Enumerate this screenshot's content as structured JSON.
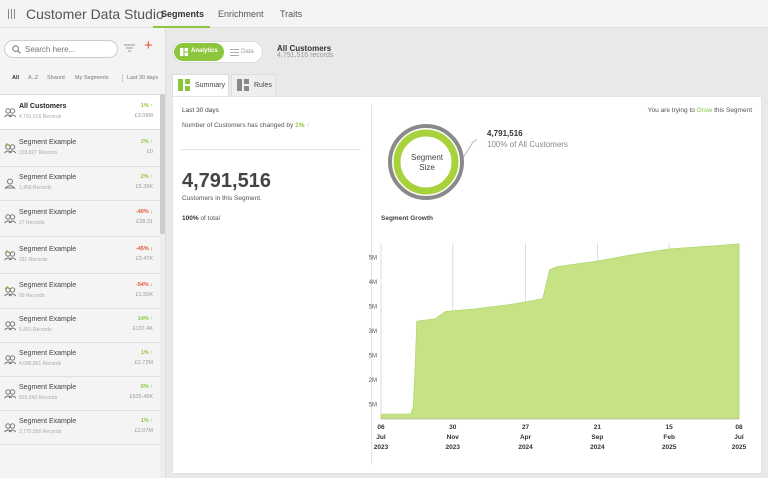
{
  "app": {
    "title": "Customer Data Studio"
  },
  "nav": {
    "tabs": [
      "Segments",
      "Enrichment",
      "Traits"
    ],
    "active": "Segments"
  },
  "sidebar": {
    "search_placeholder": "Search here...",
    "filter_tabs": [
      "All",
      "A..Z",
      "Shared",
      "My Segments"
    ],
    "period_tab": "Last 30 days",
    "items": [
      {
        "name": "All Customers",
        "records": "4,791,516 Records",
        "change": "1%",
        "direction": "up",
        "value": "£3.09M",
        "icon": "users-icon"
      },
      {
        "name": "Segment Example",
        "records": "103,827 Records",
        "change": "2%",
        "direction": "up",
        "value": "£0",
        "icon": "users-grow-icon"
      },
      {
        "name": "Segment Example",
        "records": "1,458 Records",
        "change": "2%",
        "direction": "up",
        "value": "£5.39K",
        "icon": "user-icon"
      },
      {
        "name": "Segment Example",
        "records": "27 Records",
        "change": "-40%",
        "direction": "down",
        "value": "£28.31",
        "icon": "users-icon"
      },
      {
        "name": "Segment Example",
        "records": "281 Records",
        "change": "-45%",
        "direction": "down",
        "value": "£3.47K",
        "icon": "users-grow-icon"
      },
      {
        "name": "Segment Example",
        "records": "99 Records",
        "change": "-54%",
        "direction": "down",
        "value": "£1.55K",
        "icon": "users-grow-icon"
      },
      {
        "name": "Segment Example",
        "records": "5,491 Records",
        "change": "14%",
        "direction": "up",
        "value": "£137.4K",
        "icon": "users-icon"
      },
      {
        "name": "Segment Example",
        "records": "4,686,891 Records",
        "change": "1%",
        "direction": "up",
        "value": "£2.72M",
        "icon": "users-icon"
      },
      {
        "name": "Segment Example",
        "records": "833,643 Records",
        "change": "5%",
        "direction": "up",
        "value": "£535.46K",
        "icon": "users-icon"
      },
      {
        "name": "Segment Example",
        "records": "2,775,556 Records",
        "change": "1%",
        "direction": "up",
        "value": "£2.07M",
        "icon": "users-icon"
      }
    ]
  },
  "header": {
    "toggle_analytics": "Analytics",
    "toggle_data": "Data",
    "segment_title": "All Customers",
    "segment_records": "4,791,516 records"
  },
  "view_tabs": {
    "summary": "Summary",
    "rules": "Rules"
  },
  "summary": {
    "period": "Last 30 days",
    "changed_text": "Number of Customers has changed by",
    "changed_pct": "1%",
    "big_number": "4,791,516",
    "customers_text": "Customers in this Segment.",
    "total_pct": "100%",
    "total_text": "of total",
    "grow_prefix": "You are trying to",
    "grow_word": "Grow",
    "grow_suffix": "this Segment",
    "ring_label_1": "Segment",
    "ring_label_2": "Size",
    "size_count": "4,791,516",
    "size_of": "100% of All Customers",
    "growth_title": "Segment Growth"
  },
  "colors": {
    "accent": "#8cc63f",
    "down": "#e5533d",
    "chart_fill": "#c5e384"
  },
  "chart_data": {
    "type": "area",
    "title": "Segment Growth",
    "xlabel": "",
    "ylabel": "",
    "ylim": [
      1200000,
      4800000
    ],
    "yticks": [
      1500000,
      2000000,
      2500000,
      3000000,
      3500000,
      4000000,
      4500000
    ],
    "ytick_labels": [
      "1.5M",
      "2M",
      "2.5M",
      "3M",
      "3.5M",
      "4M",
      "4.5M"
    ],
    "x_range": [
      "2023-07-06",
      "2025-07-08"
    ],
    "xticks": [
      {
        "date": "2023-07-06",
        "label": [
          "06",
          "Jul",
          "2023"
        ]
      },
      {
        "date": "2023-11-30",
        "label": [
          "30",
          "Nov",
          "2023"
        ]
      },
      {
        "date": "2024-04-27",
        "label": [
          "27",
          "Apr",
          "2024"
        ]
      },
      {
        "date": "2024-09-21",
        "label": [
          "21",
          "Sep",
          "2024"
        ]
      },
      {
        "date": "2025-02-15",
        "label": [
          "15",
          "Feb",
          "2025"
        ]
      },
      {
        "date": "2025-07-08",
        "label": [
          "08",
          "Jul",
          "2025"
        ]
      }
    ],
    "x": [
      "2023-07-06",
      "2023-08-20",
      "2023-09-05",
      "2023-09-10",
      "2023-09-14",
      "2023-09-17",
      "2023-10-25",
      "2023-11-15",
      "2024-01-10",
      "2024-04-01",
      "2024-05-10",
      "2024-06-01",
      "2024-06-15",
      "2024-07-01",
      "2024-09-21",
      "2024-12-01",
      "2025-02-15",
      "2025-07-08"
    ],
    "series": [
      {
        "values": [
          1300000,
          1300000,
          1300000,
          1450000,
          2300000,
          3200000,
          3250000,
          3400000,
          3450000,
          3550000,
          3620000,
          3660000,
          4250000,
          4320000,
          4430000,
          4560000,
          4680000,
          4780000
        ]
      }
    ],
    "grid": "vertical"
  }
}
